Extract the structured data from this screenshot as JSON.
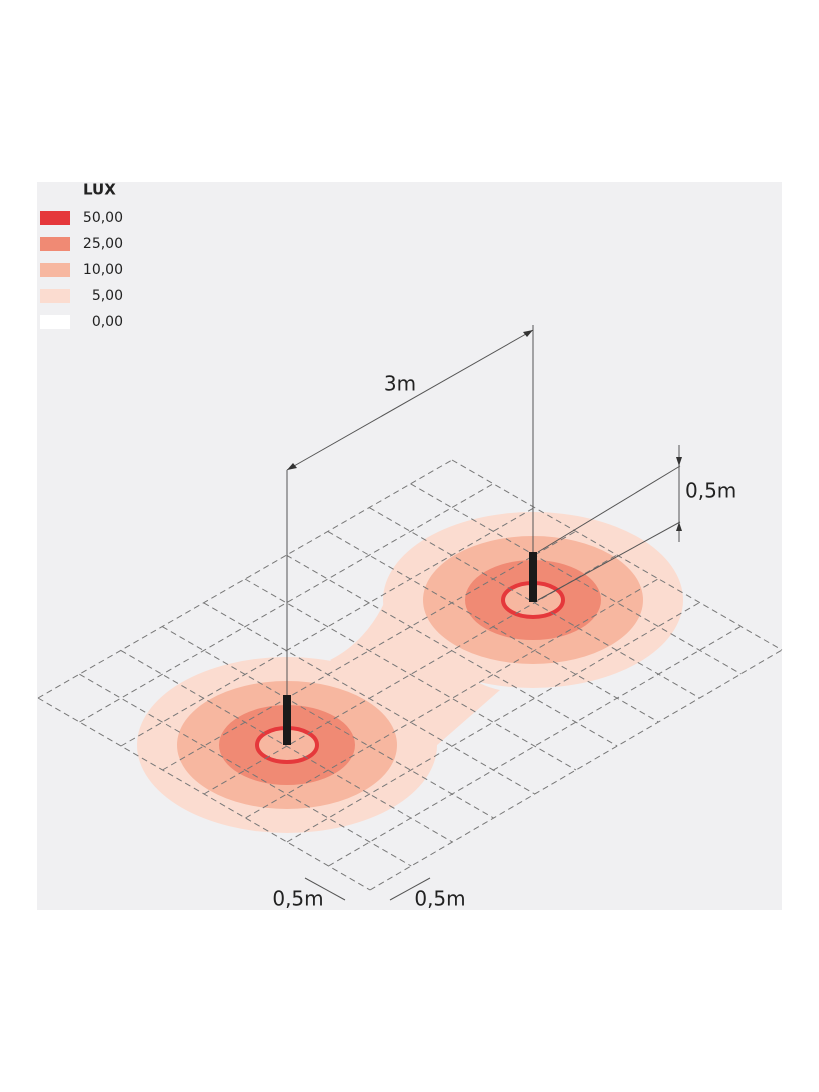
{
  "legend": {
    "title": "LUX",
    "items": [
      {
        "label": "50,00",
        "color": "#e5383b"
      },
      {
        "label": "25,00",
        "color": "#f08a74"
      },
      {
        "label": "10,00",
        "color": "#f7b7a0"
      },
      {
        "label": "5,00",
        "color": "#fbdcd0"
      },
      {
        "label": "0,00",
        "color": "#ffffff"
      }
    ]
  },
  "dimensions": {
    "spacing": "3m",
    "height": "0,5m",
    "grid_x": "0,5m",
    "grid_y": "0,5m"
  }
}
